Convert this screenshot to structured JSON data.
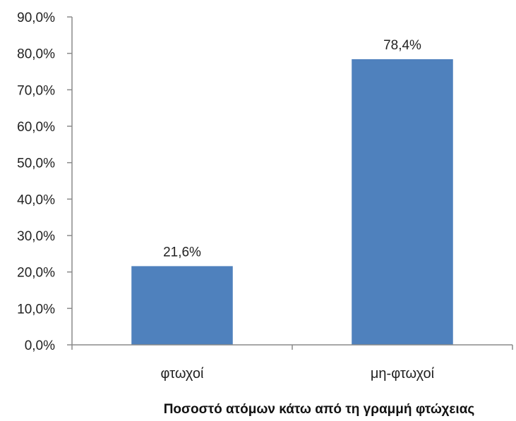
{
  "chart_data": {
    "type": "bar",
    "title": "",
    "categories": [
      "φτωχοί",
      "μη-φτωχοί"
    ],
    "values": [
      21.6,
      78.4
    ],
    "data_labels": [
      "21,6%",
      "78,4%"
    ],
    "xlabel": "Ποσοστό ατόμων κάτω από τη γραμμή φτώχειας",
    "ylabel": "",
    "ylim": [
      0,
      90
    ],
    "yticks": [
      0,
      10,
      20,
      30,
      40,
      50,
      60,
      70,
      80,
      90
    ],
    "ytick_labels": [
      "0,0%",
      "10,0%",
      "20,0%",
      "30,0%",
      "40,0%",
      "50,0%",
      "60,0%",
      "70,0%",
      "80,0%",
      "90,0%"
    ],
    "grid": false,
    "legend": "none",
    "bar_color": "#4f81bd"
  }
}
